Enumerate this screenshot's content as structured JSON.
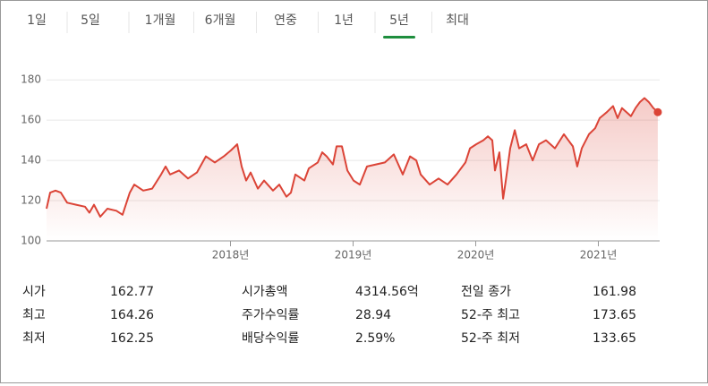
{
  "range_tabs": {
    "labels": [
      "1일",
      "5일",
      "1개월",
      "6개월",
      "연중",
      "1년",
      "5년",
      "최대"
    ],
    "selected_index": 6
  },
  "chart_data": {
    "type": "line",
    "x": [
      2016.5,
      2016.529,
      2016.573,
      2016.617,
      2016.668,
      2016.741,
      2016.814,
      2016.85,
      2016.887,
      2016.938,
      2016.996,
      2017.069,
      2017.12,
      2017.179,
      2017.215,
      2017.288,
      2017.361,
      2017.434,
      2017.471,
      2017.507,
      2017.58,
      2017.653,
      2017.726,
      2017.799,
      2017.872,
      2017.945,
      2018.004,
      2018.055,
      2018.091,
      2018.128,
      2018.164,
      2018.223,
      2018.274,
      2018.347,
      2018.398,
      2018.456,
      2018.493,
      2018.529,
      2018.602,
      2018.639,
      2018.712,
      2018.748,
      2018.785,
      2018.836,
      2018.865,
      2018.909,
      2018.953,
      2019.004,
      2019.055,
      2019.113,
      2019.186,
      2019.259,
      2019.332,
      2019.405,
      2019.464,
      2019.515,
      2019.551,
      2019.624,
      2019.697,
      2019.77,
      2019.843,
      2019.916,
      2019.953,
      2020.004,
      2020.062,
      2020.099,
      2020.135,
      2020.157,
      2020.193,
      2020.223,
      2020.245,
      2020.281,
      2020.318,
      2020.354,
      2020.412,
      2020.464,
      2020.515,
      2020.573,
      2020.646,
      2020.719,
      2020.792,
      2020.828,
      2020.865,
      2020.923,
      2020.974,
      2021.011,
      2021.069,
      2021.12,
      2021.157,
      2021.193,
      2021.266,
      2021.303,
      2021.339,
      2021.376,
      2021.412,
      2021.449,
      2021.485
    ],
    "series": [
      {
        "color": "#db4437",
        "values": [
          116,
          124,
          125,
          124,
          119,
          118,
          117,
          114,
          118,
          112,
          116,
          115,
          113,
          124,
          128,
          125,
          126,
          133,
          137,
          133,
          135,
          131,
          134,
          142,
          139,
          142,
          145,
          148,
          137,
          130,
          134,
          126,
          130,
          125,
          128,
          122,
          124,
          133,
          130,
          136,
          139,
          144,
          142,
          138,
          147,
          147,
          135,
          130,
          128,
          137,
          138,
          139,
          143,
          133,
          142,
          140,
          133,
          128,
          131,
          128,
          133,
          139,
          146,
          148,
          150,
          152,
          150,
          135,
          144,
          121,
          130,
          146,
          155,
          146,
          148,
          140,
          148,
          150,
          146,
          153,
          147,
          137,
          146,
          153,
          156,
          161,
          164,
          167,
          161,
          166,
          162,
          166,
          169,
          171,
          169,
          166,
          164
        ]
      }
    ],
    "xlim": [
      2016.5,
      2021.5
    ],
    "ylim": [
      100,
      185
    ],
    "xticks": [
      {
        "value": 2018,
        "label": "2018년"
      },
      {
        "value": 2019,
        "label": "2019년"
      },
      {
        "value": 2020,
        "label": "2020년"
      },
      {
        "value": 2021,
        "label": "2021년"
      }
    ],
    "yticks": [
      100,
      120,
      140,
      160,
      180
    ],
    "grid": true,
    "area_fill": true,
    "end_marker": true
  },
  "stats": [
    [
      {
        "label": "시가",
        "value": "162.77"
      },
      {
        "label": "최고",
        "value": "164.26"
      },
      {
        "label": "최저",
        "value": "162.25"
      }
    ],
    [
      {
        "label": "시가총액",
        "value": "4314.56억"
      },
      {
        "label": "주가수익률",
        "value": "28.94"
      },
      {
        "label": "배당수익률",
        "value": "2.59%"
      }
    ],
    [
      {
        "label": "전일 종가",
        "value": "161.98"
      },
      {
        "label": "52-주 최고",
        "value": "173.65"
      },
      {
        "label": "52-주 최저",
        "value": "133.65"
      }
    ]
  ]
}
